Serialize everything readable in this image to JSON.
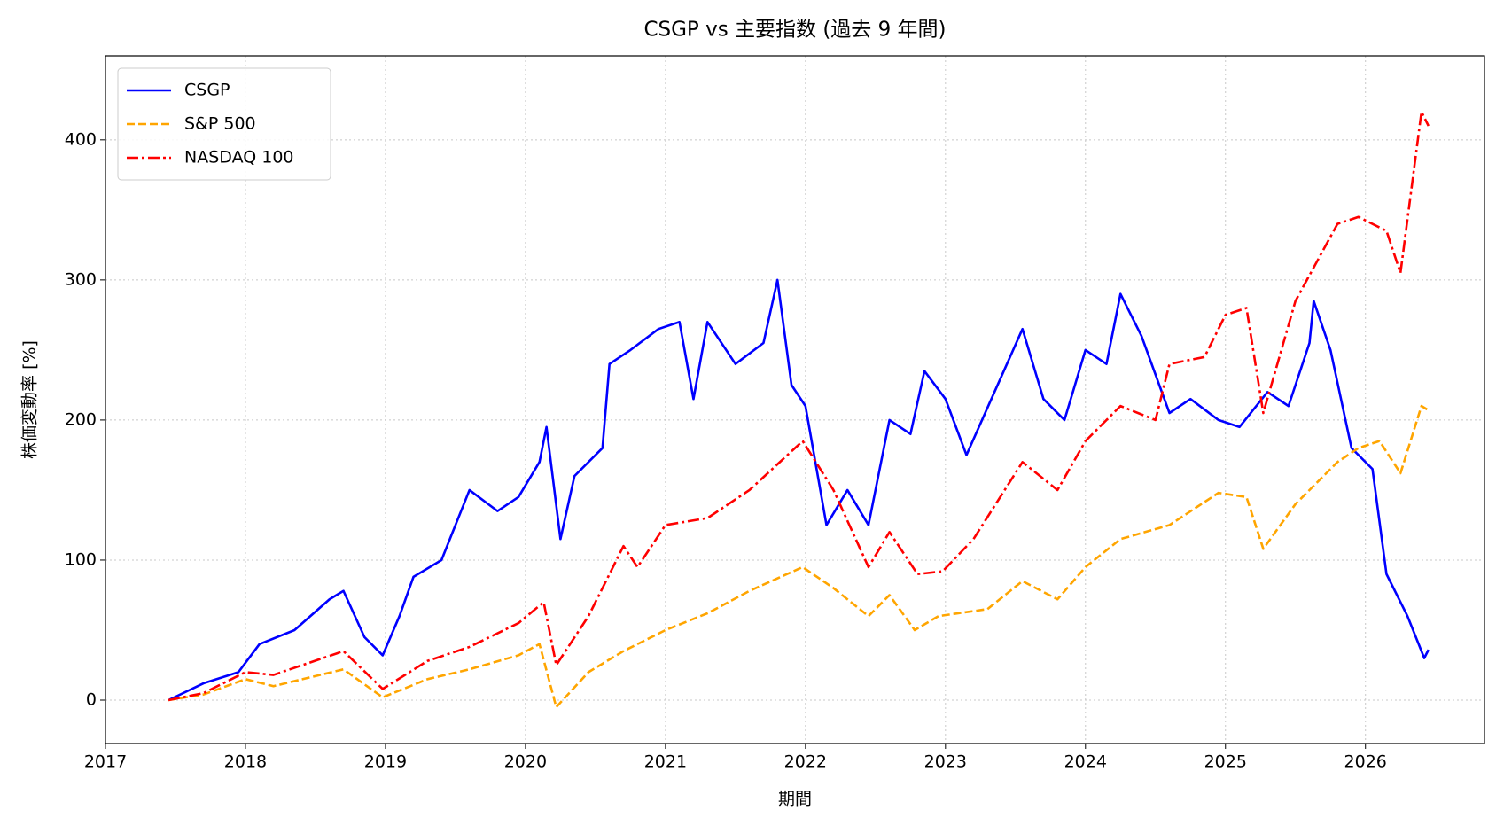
{
  "chart_data": {
    "type": "line",
    "title": "CSGP vs 主要指数 (過去 9 年間)",
    "x_label": "期間",
    "y_label": "株価変動率 [%]",
    "xlim": [
      2017,
      2026.85
    ],
    "xticks": [
      2017,
      2018,
      2019,
      2020,
      2021,
      2022,
      2023,
      2024,
      2025,
      2026
    ],
    "ylim": [
      -31,
      460
    ],
    "yticks": [
      0,
      100,
      200,
      300,
      400
    ],
    "grid": true,
    "legend": "upper left",
    "series": [
      {
        "name": "CSGP",
        "color": "#0000ff",
        "style": "solid",
        "x": [
          2017.45,
          2017.7,
          2017.95,
          2018.1,
          2018.35,
          2018.6,
          2018.7,
          2018.85,
          2018.98,
          2019.1,
          2019.2,
          2019.4,
          2019.6,
          2019.8,
          2019.95,
          2020.1,
          2020.15,
          2020.25,
          2020.35,
          2020.55,
          2020.6,
          2020.75,
          2020.95,
          2021.1,
          2021.2,
          2021.3,
          2021.5,
          2021.7,
          2021.8,
          2021.9,
          2022.0,
          2022.15,
          2022.3,
          2022.45,
          2022.6,
          2022.75,
          2022.85,
          2023.0,
          2023.15,
          2023.35,
          2023.55,
          2023.7,
          2023.85,
          2024.0,
          2024.15,
          2024.25,
          2024.4,
          2024.6,
          2024.75,
          2024.95,
          2025.1,
          2025.3,
          2025.45,
          2025.6,
          2025.63,
          2025.75,
          2025.9,
          2026.05,
          2026.15,
          2026.3,
          2026.42,
          2026.45
        ],
        "values": [
          0,
          12,
          20,
          40,
          50,
          72,
          78,
          45,
          32,
          60,
          88,
          100,
          150,
          135,
          145,
          170,
          195,
          115,
          160,
          180,
          240,
          250,
          265,
          270,
          215,
          270,
          240,
          255,
          300,
          225,
          210,
          125,
          150,
          125,
          200,
          190,
          235,
          215,
          175,
          220,
          265,
          215,
          200,
          250,
          240,
          290,
          260,
          205,
          215,
          200,
          195,
          220,
          210,
          255,
          285,
          250,
          180,
          165,
          90,
          60,
          30,
          36
        ]
      },
      {
        "name": "S&P 500",
        "color": "#ffa500",
        "style": "dashed",
        "x": [
          2017.45,
          2017.7,
          2018.0,
          2018.2,
          2018.7,
          2018.98,
          2019.3,
          2019.6,
          2019.95,
          2020.1,
          2020.22,
          2020.45,
          2020.7,
          2021.0,
          2021.3,
          2021.6,
          2021.98,
          2022.2,
          2022.45,
          2022.6,
          2022.78,
          2022.95,
          2023.3,
          2023.55,
          2023.8,
          2024.0,
          2024.25,
          2024.6,
          2024.95,
          2025.15,
          2025.27,
          2025.5,
          2025.8,
          2025.95,
          2026.1,
          2026.25,
          2026.4,
          2026.45
        ],
        "values": [
          0,
          4,
          15,
          10,
          22,
          2,
          15,
          22,
          32,
          40,
          -5,
          20,
          35,
          50,
          62,
          78,
          95,
          80,
          60,
          75,
          50,
          60,
          65,
          85,
          72,
          95,
          115,
          125,
          148,
          145,
          108,
          140,
          170,
          180,
          185,
          162,
          210,
          207
        ]
      },
      {
        "name": "NASDAQ 100",
        "color": "#ff0000",
        "style": "dashdot",
        "x": [
          2017.45,
          2017.7,
          2018.0,
          2018.2,
          2018.7,
          2018.98,
          2019.3,
          2019.6,
          2019.95,
          2020.13,
          2020.22,
          2020.45,
          2020.7,
          2020.8,
          2021.0,
          2021.3,
          2021.6,
          2021.98,
          2022.2,
          2022.45,
          2022.6,
          2022.8,
          2022.98,
          2023.2,
          2023.55,
          2023.8,
          2024.0,
          2024.25,
          2024.5,
          2024.6,
          2024.85,
          2025.0,
          2025.15,
          2025.27,
          2025.5,
          2025.8,
          2025.95,
          2026.15,
          2026.25,
          2026.4,
          2026.45
        ],
        "values": [
          0,
          5,
          20,
          18,
          35,
          8,
          28,
          38,
          55,
          70,
          25,
          60,
          110,
          95,
          125,
          130,
          150,
          185,
          150,
          95,
          120,
          90,
          92,
          115,
          170,
          150,
          185,
          210,
          200,
          240,
          245,
          275,
          280,
          205,
          285,
          340,
          345,
          335,
          305,
          420,
          410
        ]
      }
    ]
  }
}
